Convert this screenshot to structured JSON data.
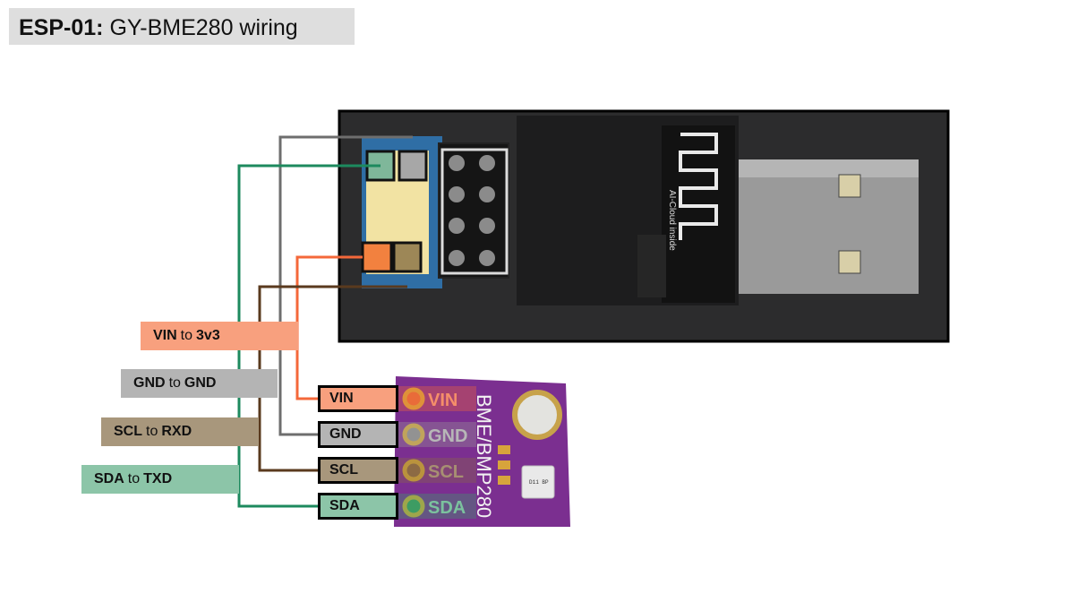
{
  "title": {
    "bold": "ESP-01:",
    "rest": "GY-BME280 wiring"
  },
  "colors": {
    "vin": "#f4683a",
    "gnd": "#6e6e6e",
    "scl": "#5a3a1e",
    "sda": "#1d8a5e",
    "vin_light": "#f8a07e",
    "gnd_light": "#b4b4b4",
    "scl_light": "#a8977c",
    "sda_light": "#8cc5a8"
  },
  "connections": [
    {
      "from": "VIN",
      "to_word": "to",
      "to": "3v3"
    },
    {
      "from": "GND",
      "to_word": "to",
      "to": "GND"
    },
    {
      "from": "SCL",
      "to_word": "to",
      "to": "RXD"
    },
    {
      "from": "SDA",
      "to_word": "to",
      "to": "TXD"
    }
  ],
  "sensor": {
    "pins": [
      "VIN",
      "GND",
      "SCL",
      "SDA"
    ],
    "board_name": "BME/BMP280",
    "chip_text": "D11 BP"
  },
  "adapter": {
    "antenna_text": "AI-Cloud inside"
  }
}
